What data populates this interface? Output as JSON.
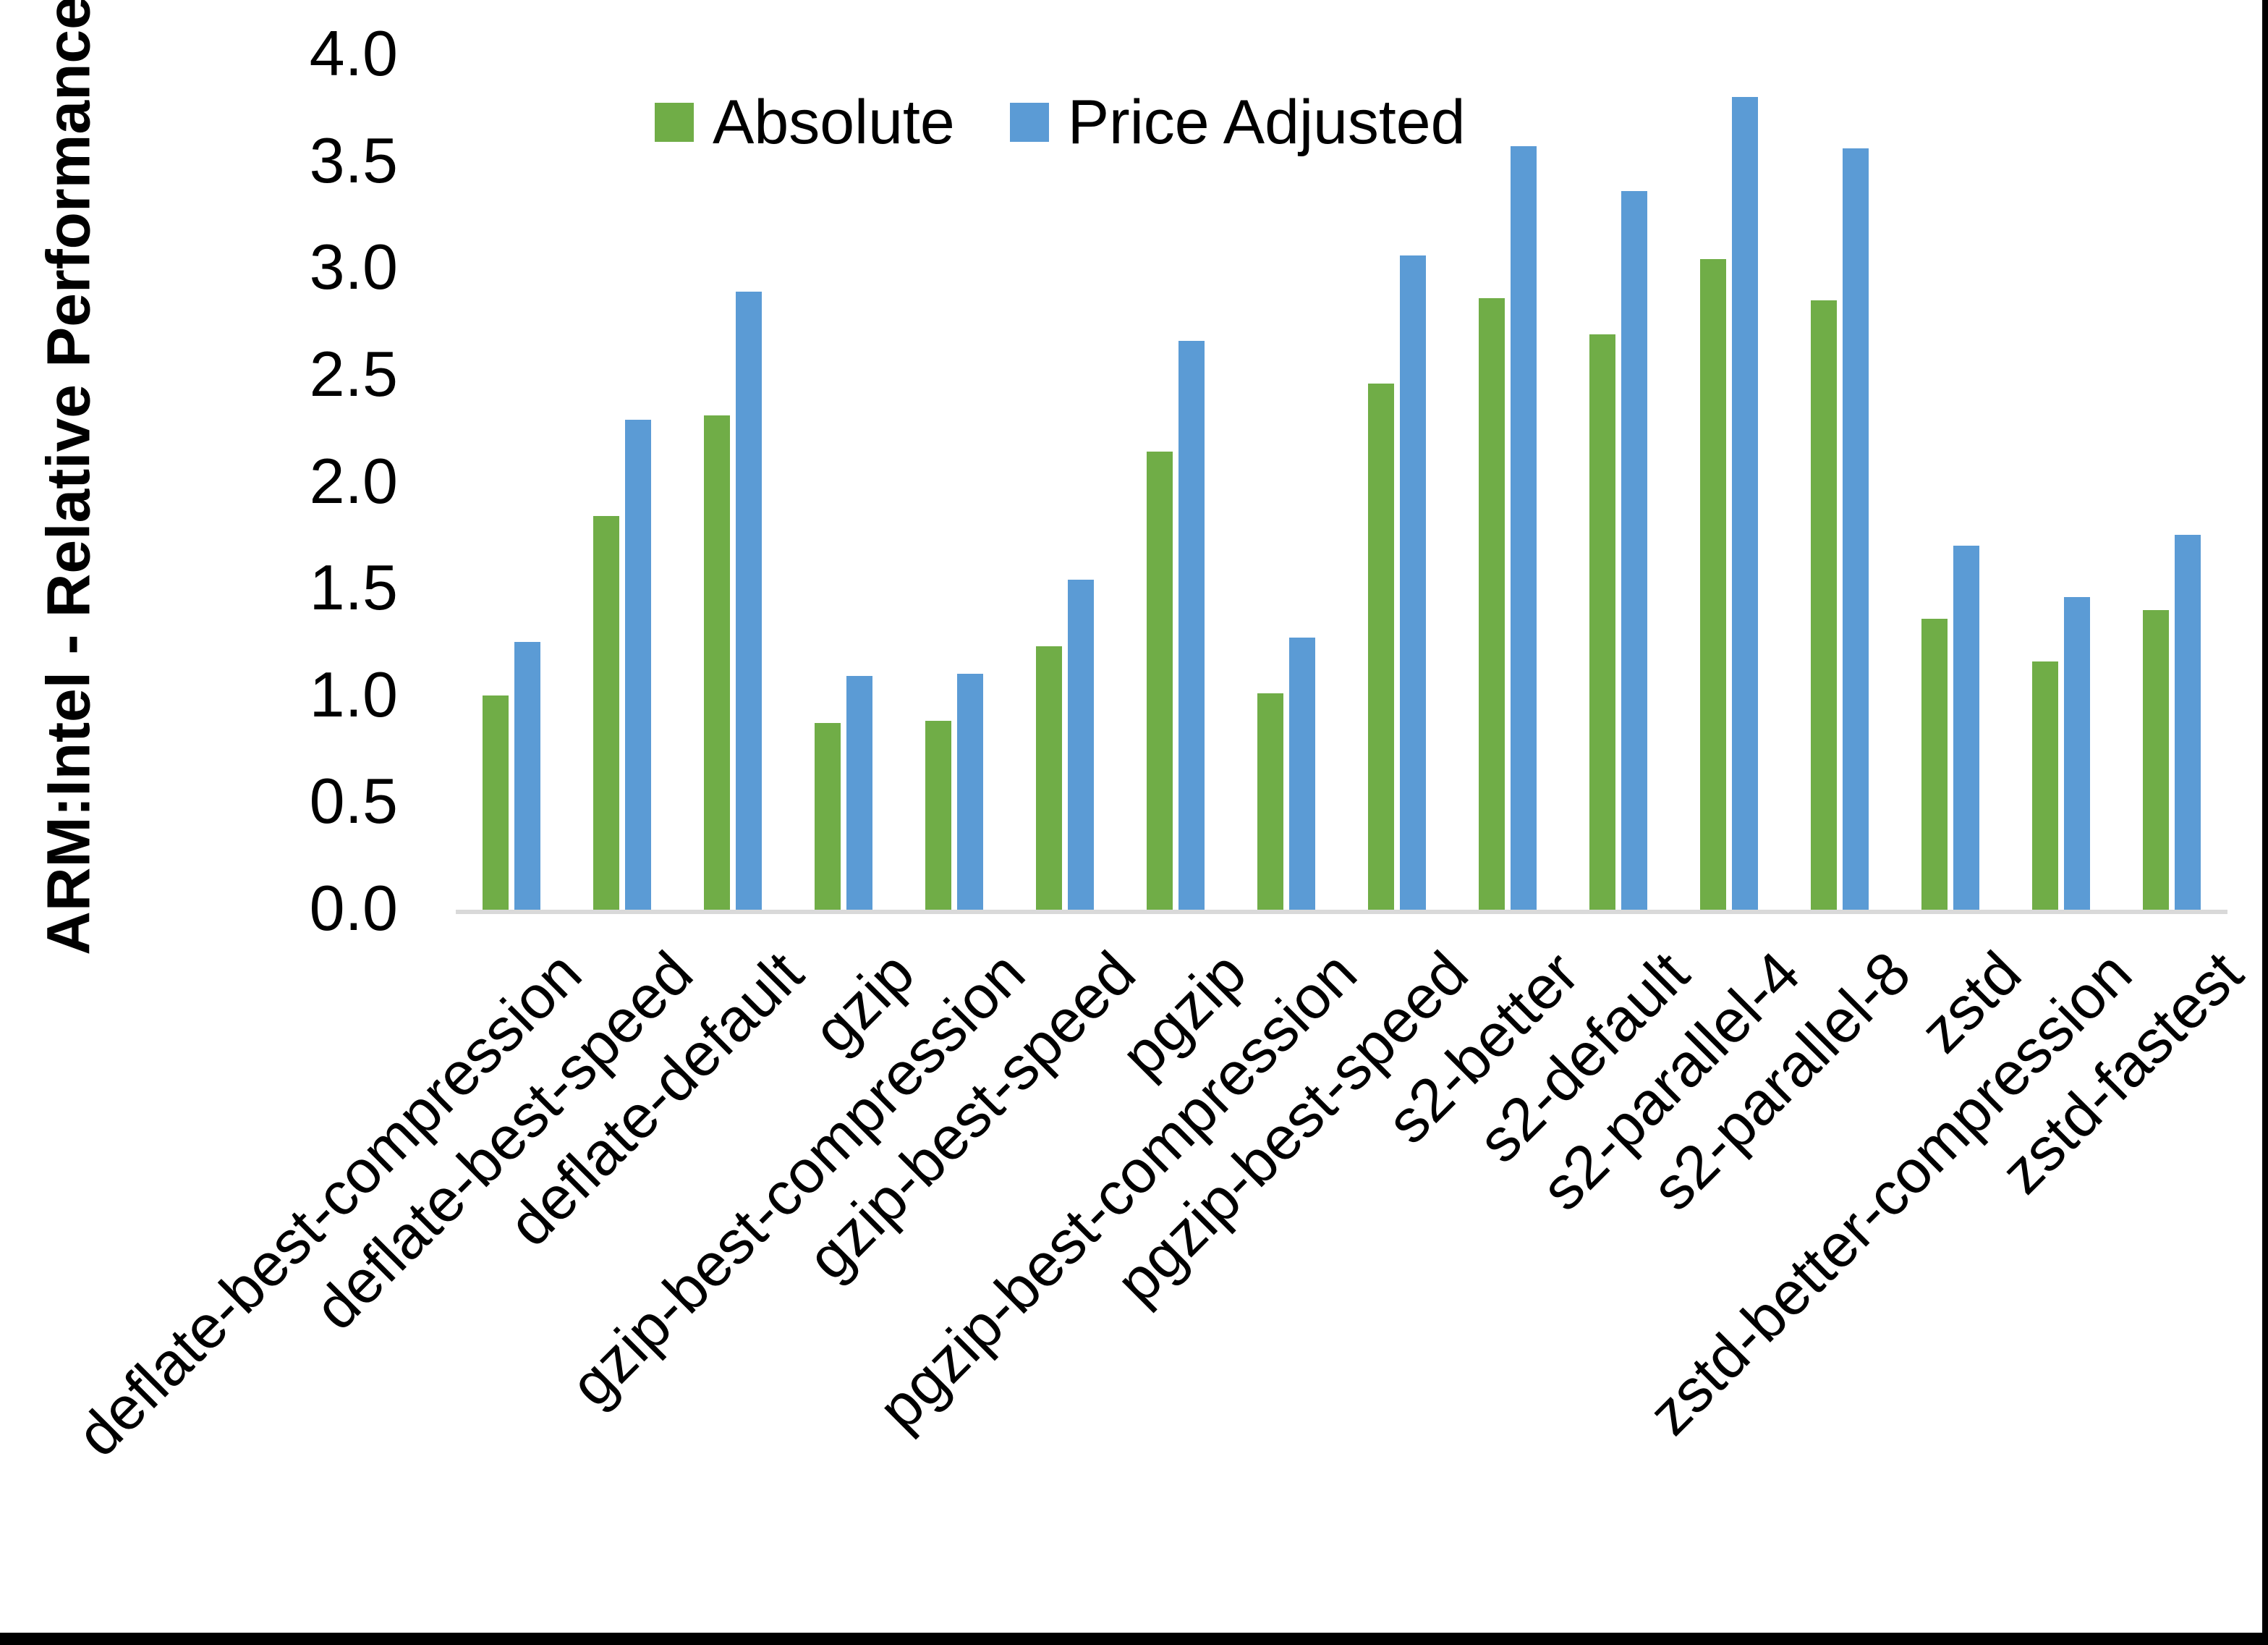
{
  "chart_data": {
    "type": "bar",
    "title": "",
    "xlabel": "",
    "ylabel": "ARM:Intel - Relative Performance",
    "ylim": [
      0.0,
      4.0
    ],
    "ytick_labels": [
      "0.0",
      "0.5",
      "1.0",
      "1.5",
      "2.0",
      "2.5",
      "3.0",
      "3.5",
      "4.0"
    ],
    "grid": false,
    "legend_position": "top-center",
    "categories": [
      "deflate-best-compression",
      "deflate-best-speed",
      "deflate-default",
      "gzip",
      "gzip-best-compression",
      "gzip-best-speed",
      "pgzip",
      "pgzip-best-compression",
      "pgzip-best-speed",
      "s2-better",
      "s2-default",
      "s2-parallel-4",
      "s2-parallel-8",
      "zstd",
      "zstd-better-compression",
      "zstd-fastest"
    ],
    "series": [
      {
        "name": "Absolute",
        "color": "#70AD47",
        "values": [
          1.01,
          1.85,
          2.32,
          0.88,
          0.89,
          1.24,
          2.15,
          1.02,
          2.47,
          2.87,
          2.7,
          3.05,
          2.86,
          1.37,
          1.17,
          1.41
        ]
      },
      {
        "name": "Price Adjusted",
        "color": "#5B9BD5",
        "values": [
          1.26,
          2.3,
          2.9,
          1.1,
          1.11,
          1.55,
          2.67,
          1.28,
          3.07,
          3.58,
          3.37,
          3.81,
          3.57,
          1.71,
          1.47,
          1.76
        ]
      }
    ],
    "axis_line_color": "#D9D9D9",
    "text_color": "#000000"
  }
}
